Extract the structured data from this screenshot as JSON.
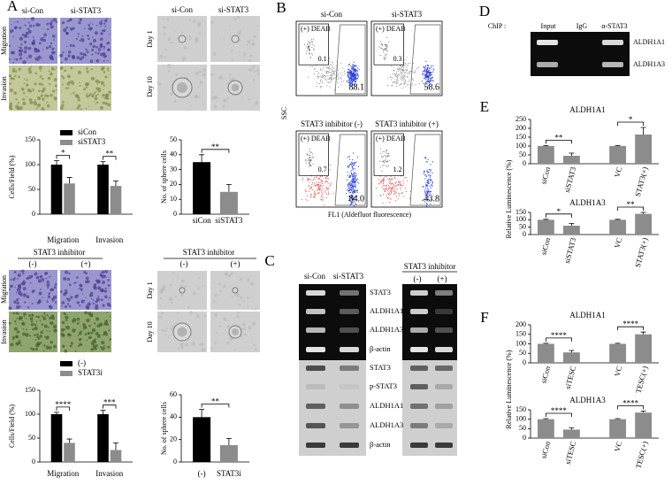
{
  "panel_labels": [
    "A",
    "B",
    "C",
    "D",
    "E",
    "F"
  ],
  "panel_a": {
    "top": {
      "columns": [
        "si-Con",
        "si-STAT3"
      ],
      "rows": [
        "Migration",
        "Invasion"
      ],
      "sphere_columns": [
        "si-Con",
        "si-STAT3"
      ],
      "sphere_rows": [
        "Day 1",
        "Day 10"
      ]
    },
    "bottom": {
      "header": "STAT3 inhibitor",
      "columns": [
        "(-)",
        "(+)"
      ],
      "rows": [
        "Migration",
        "Invasion"
      ],
      "sphere_header": "STAT3 inhibitor",
      "sphere_columns": [
        "(-)",
        "(+)"
      ],
      "sphere_rows": [
        "Day 1",
        "Day 10"
      ]
    }
  },
  "panel_b": {
    "plots": [
      {
        "title": "si-Con",
        "inset": "(+) DEAB",
        "inset_value": "0.1",
        "value": "88.1"
      },
      {
        "title": "si-STAT3",
        "inset": "(+) DEAB",
        "inset_value": "0.3",
        "value": "58.6"
      },
      {
        "title": "STAT3 inhibitor (-)",
        "inset": "(+) DEAB",
        "inset_value": "0.7",
        "value": "84.0"
      },
      {
        "title": "STAT3 inhibitor (+)",
        "inset": "(+) DEAB",
        "inset_value": "1.2",
        "value": "43.8"
      }
    ],
    "y_label": "SSC",
    "x_label": "FL1 (Aldefluor fluorescence)"
  },
  "panel_c": {
    "left_columns": [
      "si-Con",
      "si-STAT3"
    ],
    "right_header": "STAT3 inhibitor",
    "right_columns": [
      "(-)",
      "(+)"
    ],
    "rows": [
      "STAT3",
      "ALDH1A1",
      "ALDH1A3",
      "β-actin",
      "STAT3",
      "p-STAT3",
      "ALDH1A1",
      "ALDH1A3",
      "β-actin"
    ]
  },
  "panel_d": {
    "prefix": "ChIP :",
    "columns": [
      "Input",
      "IgG",
      "α-STAT3"
    ],
    "rows": [
      "ALDH1A1",
      "ALDH1A3"
    ]
  },
  "chart_data": [
    {
      "type": "bar",
      "ylabel": "Cells/Field (%)",
      "categories": [
        "Migration",
        "Invasion"
      ],
      "series": [
        {
          "name": "siCon",
          "color": "#000000",
          "values": [
            100,
            100
          ],
          "errors": [
            8,
            6
          ]
        },
        {
          "name": "siSTAT3",
          "color": "#8c8c8c",
          "values": [
            62,
            57
          ],
          "errors": [
            12,
            10
          ]
        }
      ],
      "ylim": [
        0,
        150
      ],
      "yticks": [
        0,
        50,
        100,
        150
      ],
      "annotations": [
        "*",
        "**"
      ]
    },
    {
      "type": "bar",
      "ylabel": "No. of sphere cells",
      "categories": [
        "siCon",
        "siSTAT3"
      ],
      "values": [
        35,
        15
      ],
      "errors": [
        5,
        5
      ],
      "colors": [
        "#000000",
        "#8c8c8c"
      ],
      "ylim": [
        0,
        50
      ],
      "yticks": [
        0,
        10,
        20,
        30,
        40,
        50
      ],
      "annotations": [
        "**"
      ]
    },
    {
      "type": "bar",
      "ylabel": "Cells/Field (%)",
      "categories": [
        "Migration",
        "Invasion"
      ],
      "series": [
        {
          "name": "(-)",
          "color": "#000000",
          "values": [
            100,
            100
          ],
          "errors": [
            4,
            8
          ]
        },
        {
          "name": "STAT3i",
          "color": "#8c8c8c",
          "values": [
            40,
            25
          ],
          "errors": [
            8,
            15
          ]
        }
      ],
      "ylim": [
        0,
        150
      ],
      "yticks": [
        0,
        50,
        100,
        150
      ],
      "annotations": [
        "****",
        "***"
      ]
    },
    {
      "type": "bar",
      "ylabel": "No. of sphere cells",
      "categories": [
        "(-)",
        "STAT3i"
      ],
      "values": [
        40,
        15
      ],
      "errors": [
        7,
        6
      ],
      "colors": [
        "#000000",
        "#8c8c8c"
      ],
      "ylim": [
        0,
        60
      ],
      "yticks": [
        0,
        20,
        40,
        60
      ],
      "annotations": [
        "**"
      ]
    },
    {
      "type": "bar",
      "title": "ALDH1A1",
      "ylabel": "Relative Luminescence (%)",
      "categories": [
        "siCon",
        "siSTAT3",
        "VC",
        "STAT3(+)"
      ],
      "values": [
        100,
        45,
        100,
        165
      ],
      "errors": [
        3,
        15,
        3,
        40
      ],
      "colors": [
        "#8c8c8c",
        "#8c8c8c",
        "#8c8c8c",
        "#8c8c8c"
      ],
      "ylim": [
        0,
        250
      ],
      "yticks": [
        0,
        50,
        100,
        150,
        200,
        250
      ],
      "annotations": [
        "**",
        "*"
      ]
    },
    {
      "type": "bar",
      "title": "ALDH1A3",
      "categories": [
        "siCon",
        "siSTAT3",
        "VC",
        "STAT3(+)"
      ],
      "values": [
        100,
        60,
        100,
        140
      ],
      "errors": [
        3,
        15,
        3,
        10
      ],
      "colors": [
        "#8c8c8c",
        "#8c8c8c",
        "#8c8c8c",
        "#8c8c8c"
      ],
      "ylim": [
        0,
        150
      ],
      "yticks": [
        0,
        50,
        100,
        150
      ],
      "annotations": [
        "*",
        "**"
      ]
    },
    {
      "type": "bar",
      "title": "ALDH1A1",
      "ylabel": "Relative Luminescence (%)",
      "categories": [
        "siCon",
        "siTESC",
        "VC",
        "TESC(+)"
      ],
      "values": [
        100,
        55,
        100,
        150
      ],
      "errors": [
        3,
        10,
        3,
        12
      ],
      "colors": [
        "#8c8c8c",
        "#8c8c8c",
        "#8c8c8c",
        "#8c8c8c"
      ],
      "ylim": [
        0,
        200
      ],
      "yticks": [
        0,
        50,
        100,
        150,
        200
      ],
      "annotations": [
        "****",
        "****"
      ]
    },
    {
      "type": "bar",
      "title": "ALDH1A3",
      "categories": [
        "siCon",
        "siTESC",
        "VC",
        "TESC(+)"
      ],
      "values": [
        100,
        45,
        100,
        135
      ],
      "errors": [
        3,
        10,
        3,
        8
      ],
      "colors": [
        "#8c8c8c",
        "#8c8c8c",
        "#8c8c8c",
        "#8c8c8c"
      ],
      "ylim": [
        0,
        150
      ],
      "yticks": [
        0,
        50,
        100,
        150
      ],
      "annotations": [
        "****",
        "****"
      ]
    }
  ]
}
